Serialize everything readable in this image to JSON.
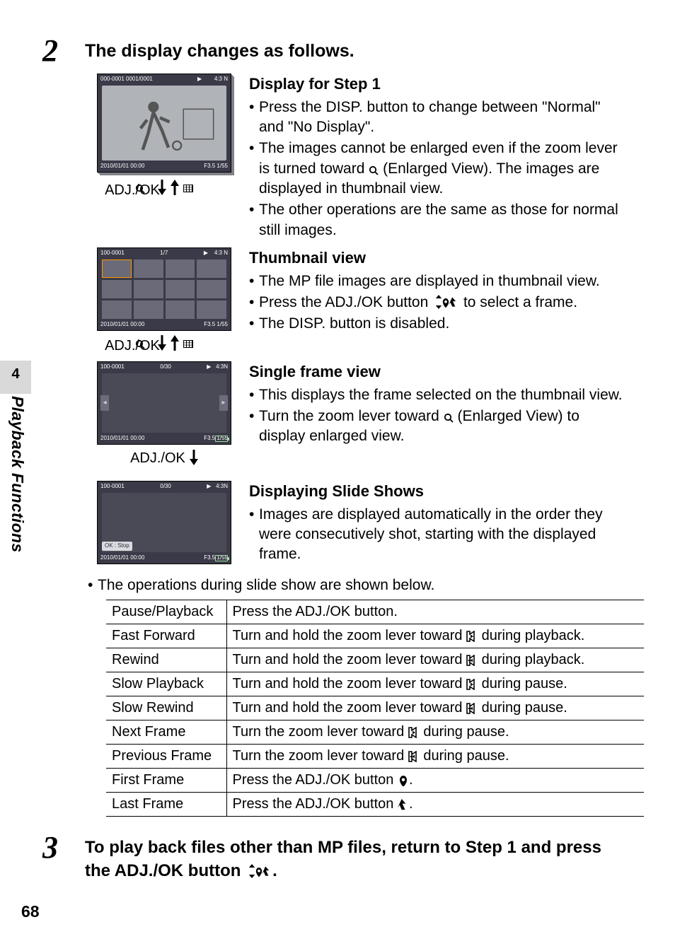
{
  "page_number": "68",
  "side_tab_number": "4",
  "side_label": "Playback Functions",
  "step2": {
    "number": "2",
    "title": "The display changes as follows.",
    "shot_top": {
      "tl": "000-0001  0001/0001",
      "tr": "4:3 N",
      "bl": "2010/01/01 00:00",
      "br": "F3.5  1/55"
    },
    "shot_thumb": {
      "tl": "100-0001",
      "tc": "1/7",
      "tr": "4:3 N",
      "bl": "2010/01/01 00:00",
      "br": "F3.5  1/55"
    },
    "shot_single": {
      "tl": "100-0001",
      "tc": "0/30",
      "tr": "4:3N",
      "bl": "2010/01/01 00:00",
      "br": "F3.5  1/55"
    },
    "shot_slide": {
      "tl": "100-0001",
      "tc": "0/30",
      "tr": "4:3N",
      "ok": "OK : Stop",
      "bl": "2010/01/01 00:00",
      "br": "F3.5  1/55"
    },
    "nav1": "ADJ./OK",
    "nav2": "ADJ./OK",
    "nav3": "ADJ./OK",
    "sec1": {
      "title": "Display for Step 1",
      "b1": "Press the DISP. button to change between \"Normal\" and \"No Display\".",
      "b2_a": "The images cannot be enlarged even if the zoom lever is turned toward ",
      "b2_b": " (Enlarged View). The images are displayed in thumbnail view.",
      "b3": "The other operations are the same as those for normal still images."
    },
    "sec2": {
      "title": "Thumbnail view",
      "b1": "The MP file images are displayed in thumbnail view.",
      "b2_a": "Press the ADJ./OK button ",
      "b2_b": " to select a frame.",
      "b3": "The DISP. button is disabled."
    },
    "sec3": {
      "title": "Single frame view",
      "b1": "This displays the frame selected on the thumbnail view.",
      "b2_a": "Turn the zoom lever toward ",
      "b2_b": " (Enlarged View) to display enlarged view."
    },
    "sec4": {
      "title": "Displaying Slide Shows",
      "b1": "Images are displayed automatically in the order they were consecutively shot, starting with the displayed frame."
    },
    "ops_note": "The operations during slide show are shown below.",
    "table": {
      "rows": [
        {
          "op": "Pause/Playback",
          "desc_a": "Press the ADJ./OK button.",
          "icon": null,
          "desc_b": ""
        },
        {
          "op": "Fast Forward",
          "desc_a": "Turn and hold the zoom lever toward ",
          "icon": "tele",
          "desc_b": " during playback."
        },
        {
          "op": "Rewind",
          "desc_a": "Turn and hold the zoom lever toward ",
          "icon": "wide",
          "desc_b": " during playback."
        },
        {
          "op": "Slow Playback",
          "desc_a": "Turn and hold the zoom lever toward ",
          "icon": "tele",
          "desc_b": " during pause."
        },
        {
          "op": "Slow Rewind",
          "desc_a": "Turn and hold the zoom lever toward ",
          "icon": "wide",
          "desc_b": " during pause."
        },
        {
          "op": "Next Frame",
          "desc_a": "Turn the zoom lever toward ",
          "icon": "tele",
          "desc_b": " during pause."
        },
        {
          "op": "Previous Frame",
          "desc_a": "Turn the zoom lever toward ",
          "icon": "wide",
          "desc_b": " during pause."
        },
        {
          "op": "First Frame",
          "desc_a": "Press the ADJ./OK button ",
          "icon": "macro",
          "desc_b": "."
        },
        {
          "op": "Last Frame",
          "desc_a": "Press the ADJ./OK button ",
          "icon": "flash",
          "desc_b": "."
        }
      ]
    }
  },
  "step3": {
    "number": "3",
    "title_a": "To play back files other than MP files, return to Step 1 and press the ADJ./OK button ",
    "title_b": "."
  },
  "colors": {
    "text": "#000000",
    "screenshot_bg": "#3a3a48",
    "side_tab": "#d9d9d9"
  }
}
